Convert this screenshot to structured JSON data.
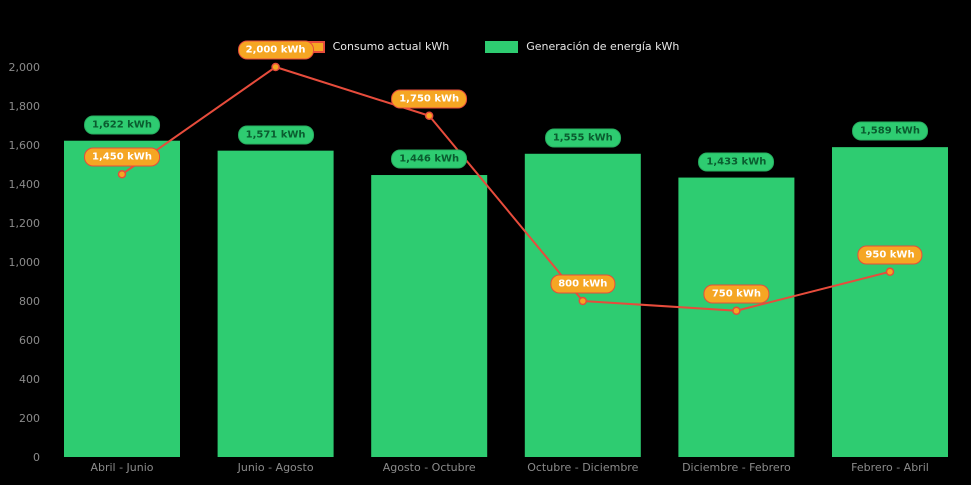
{
  "colors": {
    "background": "#000000",
    "axis_text": "#8b8b8b",
    "bar": "#2ecc71",
    "line": "#e74c3c",
    "point": "#f5a623",
    "bar_label_bg": "#2ecc71",
    "bar_label_text": "#0a5c2f",
    "line_label_bg": "#f5a623",
    "line_label_text": "#ffffff"
  },
  "legend": {
    "items": [
      {
        "label": "Consumo actual kWh",
        "swatch_color": "#f5a623",
        "swatch_border": "#e74c3c"
      },
      {
        "label": "Generación de energía kWh",
        "swatch_color": "#2ecc71",
        "swatch_border": "#2ecc71"
      }
    ]
  },
  "chart_data": {
    "type": "bar+line",
    "title": "",
    "xlabel": "",
    "ylabel": "",
    "grid": false,
    "legend_position": "top-center",
    "ylim": [
      0,
      2000
    ],
    "ytick_step": 200,
    "ytick_labels": [
      "0",
      "200",
      "400",
      "600",
      "800",
      "1,000",
      "1,200",
      "1,400",
      "1,600",
      "1,800",
      "2,000"
    ],
    "categories": [
      "Abril - Junio",
      "Junio - Agosto",
      "Agosto - Octubre",
      "Octubre - Diciembre",
      "Diciembre - Febrero",
      "Febrero - Abril"
    ],
    "series": [
      {
        "name": "Consumo actual kWh",
        "type": "line",
        "color": "#e74c3c",
        "point_color": "#f5a623",
        "values": [
          1450,
          2000,
          1750,
          800,
          750,
          950
        ],
        "labels": [
          "1,450 kWh",
          "2,000 kWh",
          "1,750 kWh",
          "800 kWh",
          "750 kWh",
          "950 kWh"
        ]
      },
      {
        "name": "Generación de energía kWh",
        "type": "bar",
        "color": "#2ecc71",
        "values": [
          1622,
          1571,
          1446,
          1555,
          1433,
          1589
        ],
        "labels": [
          "1,622 kWh",
          "1,571 kWh",
          "1,446 kWh",
          "1,555 kWh",
          "1,433 kWh",
          "1,589 kWh"
        ]
      }
    ]
  }
}
